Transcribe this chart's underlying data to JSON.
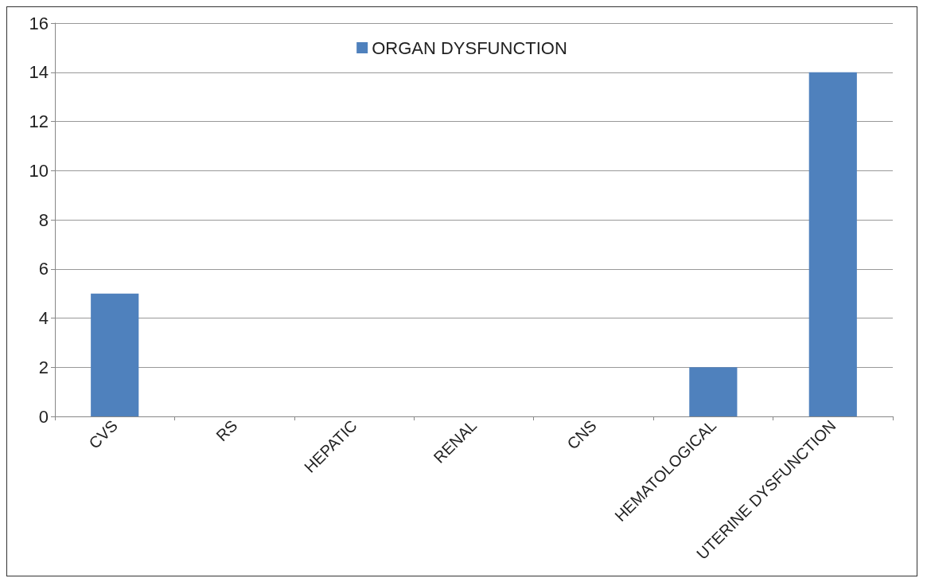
{
  "chart_data": {
    "type": "bar",
    "categories": [
      "CVS",
      "RS",
      "HEPATIC",
      "RENAL",
      "CNS",
      "HEMATOLOGICAL",
      "UTERINE DYSFUNCTION"
    ],
    "series": [
      {
        "name": "ORGAN DYSFUNCTION",
        "color": "#4f81bd",
        "values": [
          5,
          0,
          0,
          0,
          0,
          2,
          14
        ]
      }
    ],
    "ylim": [
      0,
      16
    ],
    "yticks": [
      0,
      2,
      4,
      6,
      8,
      10,
      12,
      14,
      16
    ],
    "grid": "y",
    "legend": "top"
  }
}
